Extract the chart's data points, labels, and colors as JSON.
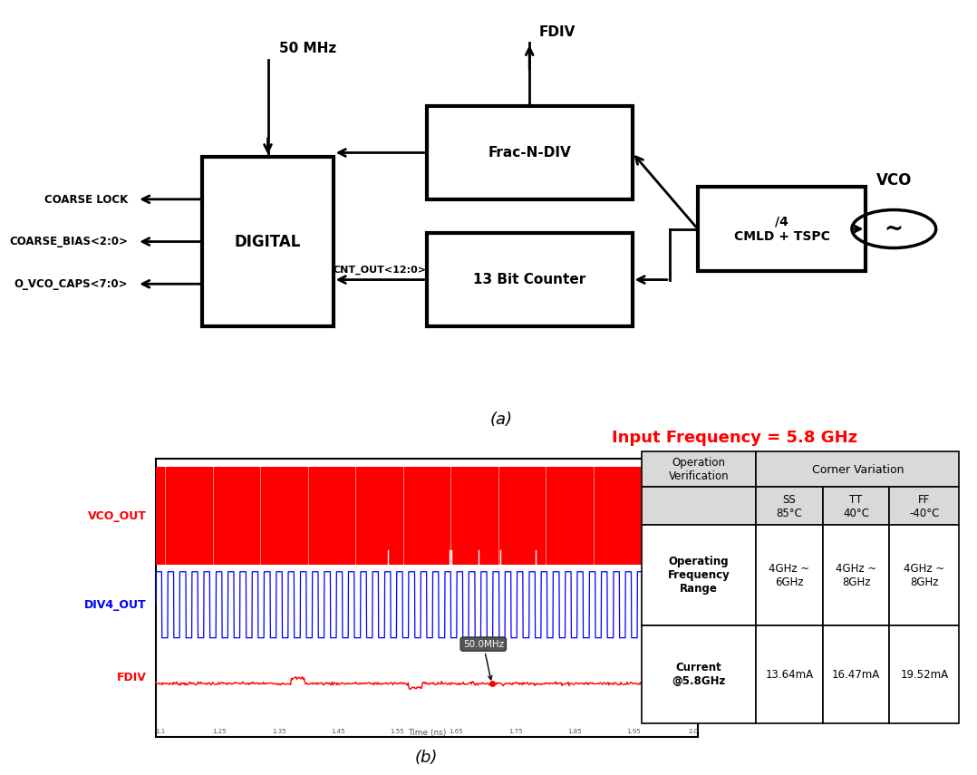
{
  "title_a": "(a)",
  "title_b": "(b)",
  "freq_label": "Input Frequency = 5.8 GHz",
  "left_labels": [
    "COARSE LOCK",
    "COARSE_BIAS<2:0>",
    "O_VCO_CAPS<7:0>"
  ],
  "cnt_label": "CNT_OUT<12:0>",
  "fdiv_label": "FDIV",
  "mhz_label": "50 MHz",
  "vco_label": "VCO",
  "cmld_label": "/4\nCMLD + TSPC",
  "frac_label": "Frac-N-DIV",
  "counter_label": "13 Bit Counter",
  "digital_label": "DIGITAL",
  "table_bg": "#d9d9d9",
  "table_white": "#ffffff",
  "annotation_50mhz": "50.0MHz",
  "label_50mhz": "50MHz",
  "bg_color": "#ffffff"
}
